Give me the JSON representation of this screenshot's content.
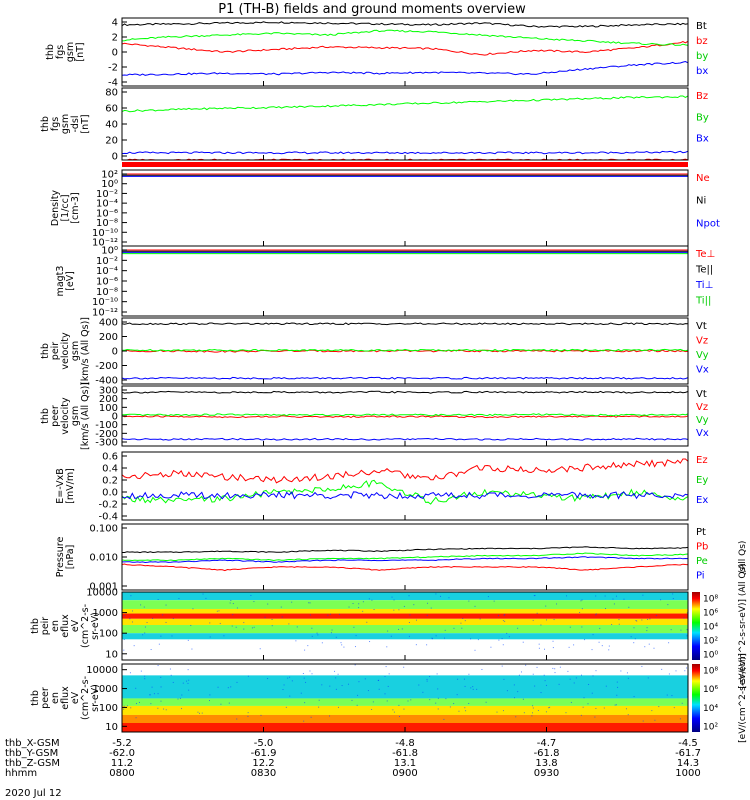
{
  "title": "P1 (TH-B) fields and ground moments overview",
  "date": "2020 Jul 12",
  "colors": {
    "black": "#000000",
    "red": "#ff0000",
    "green": "#00ff00",
    "blue": "#0000ff"
  },
  "x_axis": {
    "ticks": [
      "0800",
      "0830",
      "0900",
      "0930",
      "1000"
    ],
    "rows": [
      {
        "label": "thb_X-GSM",
        "values": [
          "-5.2",
          "-5.0",
          "-4.8",
          "-4.7",
          "-4.5"
        ]
      },
      {
        "label": "thb_Y-GSM",
        "values": [
          "-62.0",
          "-61.9",
          "-61.8",
          "-61.8",
          "-61.7"
        ]
      },
      {
        "label": "thb_Z-GSM",
        "values": [
          "11.2",
          "12.2",
          "13.1",
          "13.8",
          "14.3"
        ]
      },
      {
        "label": "hhmm",
        "values": [
          "0800",
          "0830",
          "0900",
          "0930",
          "1000"
        ]
      }
    ]
  },
  "chart_data": [
    {
      "type": "line",
      "id": "fgs",
      "ylabel": [
        "thb",
        "fgs",
        "gsm",
        "[nT]"
      ],
      "yticks": [
        "4",
        "2",
        "0",
        "-2",
        "-4"
      ],
      "ylim": [
        -4,
        4
      ],
      "series": [
        {
          "name": "Bt",
          "color": "#000000",
          "values": [
            3.2,
            3.3,
            3.4,
            3.5,
            3.4,
            3.3,
            3.2,
            3.4,
            3.0,
            3.0,
            3.2,
            3.3
          ]
        },
        {
          "name": "bz",
          "color": "#ff0000",
          "values": [
            1.0,
            0.5,
            0.0,
            0.3,
            0.6,
            0.5,
            0.4,
            -0.3,
            0.2,
            0.0,
            0.5,
            1.2
          ]
        },
        {
          "name": "by",
          "color": "#00ff00",
          "values": [
            1.4,
            1.8,
            2.0,
            2.2,
            2.0,
            2.5,
            2.4,
            2.0,
            1.6,
            1.3,
            1.0,
            0.8
          ]
        },
        {
          "name": "bx",
          "color": "#0000ff",
          "values": [
            -2.7,
            -2.6,
            -2.5,
            -2.6,
            -2.4,
            -2.5,
            -2.4,
            -2.5,
            -2.6,
            -2.0,
            -1.5,
            -1.2
          ]
        }
      ]
    },
    {
      "type": "line",
      "id": "fgs-dsl",
      "ylabel": [
        "thb",
        "fgs",
        "gsm",
        "-dsl",
        "[nT]"
      ],
      "yticks": [
        "80",
        "60",
        "40",
        "20",
        "0"
      ],
      "ylim": [
        -10,
        90
      ],
      "series": [
        {
          "name": "Bz",
          "color": "#ff0000",
          "values": [
            -10,
            -10,
            -10,
            -10,
            -10,
            -10,
            -10,
            -10,
            -10,
            -10,
            -10,
            -10
          ]
        },
        {
          "name": "By",
          "color": "#00ff00",
          "values": [
            58,
            60,
            62,
            63,
            65,
            67,
            69,
            71,
            73,
            75,
            77,
            78
          ]
        },
        {
          "name": "Bx",
          "color": "#0000ff",
          "values": [
            0,
            0,
            0,
            0,
            0,
            0,
            0,
            0,
            0,
            0,
            0.5,
            1
          ]
        }
      ]
    },
    {
      "type": "line",
      "id": "density",
      "yscale": "log",
      "ylabel": [
        "Density",
        "[1/cc]",
        "[cm-3]"
      ],
      "yticks": [
        "10²",
        "10⁰",
        "10⁻²",
        "10⁻⁴",
        "10⁻⁶",
        "10⁻⁸",
        "10⁻¹⁰",
        "10⁻¹²"
      ],
      "series": [
        {
          "name": "Ne",
          "color": "#ff0000",
          "values": [
            0.5,
            0.5,
            0.5,
            0.5,
            0.5,
            0.5,
            0.5,
            0.5,
            0.5,
            0.5,
            0.5,
            0.5
          ]
        },
        {
          "name": "Ni",
          "color": "#000000",
          "values": [
            0.6,
            0.6,
            0.6,
            0.6,
            0.6,
            0.6,
            0.6,
            0.6,
            0.6,
            0.6,
            0.6,
            0.6
          ]
        },
        {
          "name": "Npot",
          "color": "#0000ff",
          "values": [
            0.7,
            0.7,
            0.7,
            0.7,
            0.7,
            0.7,
            0.7,
            0.7,
            0.7,
            0.7,
            0.7,
            0.7
          ]
        }
      ]
    },
    {
      "type": "line",
      "id": "temperature",
      "yscale": "log",
      "ylabel": [
        "magt3",
        "[eV]"
      ],
      "yticks": [
        "10⁰",
        "10⁻²",
        "10⁻⁴",
        "10⁻⁶",
        "10⁻⁸",
        "10⁻¹⁰",
        "10⁻¹²"
      ],
      "series": [
        {
          "name": "Te⊥",
          "color": "#ff0000",
          "values": [
            1,
            1,
            1,
            1,
            1,
            1,
            1,
            1,
            1,
            1,
            1,
            1
          ]
        },
        {
          "name": "Te||",
          "color": "#000000",
          "values": [
            1,
            1,
            1,
            1,
            1,
            1,
            1,
            1,
            1,
            1,
            1,
            1
          ]
        },
        {
          "name": "Ti⊥",
          "color": "#0000ff",
          "values": [
            1,
            1,
            1,
            1,
            1,
            1,
            1,
            1,
            1,
            1,
            1,
            1
          ]
        },
        {
          "name": "Ti||",
          "color": "#00ff00",
          "values": [
            1,
            1,
            1,
            1,
            1,
            1,
            1,
            1,
            1,
            1,
            1,
            1
          ]
        }
      ]
    },
    {
      "type": "line",
      "id": "peir-velocity",
      "ylabel": [
        "thb",
        "peir",
        "velocity",
        "gsm",
        "[km/s (All Qs)]"
      ],
      "yticks": [
        "400",
        "200",
        "0",
        "-200",
        "-400"
      ],
      "ylim": [
        -400,
        400
      ],
      "series": [
        {
          "name": "Vt",
          "color": "#000000",
          "values": [
            330,
            330,
            330,
            330,
            330,
            330,
            330,
            330,
            330,
            330,
            330,
            330
          ]
        },
        {
          "name": "Vz",
          "color": "#ff0000",
          "values": [
            0,
            0,
            -5,
            0,
            0,
            0,
            0,
            0,
            0,
            0,
            0,
            0
          ]
        },
        {
          "name": "Vy",
          "color": "#00ff00",
          "values": [
            10,
            10,
            10,
            10,
            10,
            10,
            10,
            10,
            10,
            10,
            10,
            10
          ]
        },
        {
          "name": "Vx",
          "color": "#0000ff",
          "values": [
            -330,
            -330,
            -330,
            -330,
            -330,
            -330,
            -330,
            -330,
            -330,
            -330,
            -330,
            -330
          ]
        }
      ]
    },
    {
      "type": "line",
      "id": "peer-velocity",
      "ylabel": [
        "thb",
        "peer",
        "velocity",
        "gsm",
        "[km/s (All Qs)]"
      ],
      "yticks": [
        "300",
        "200",
        "100",
        "0",
        "-100",
        "-200",
        "-300"
      ],
      "ylim": [
        -300,
        300
      ],
      "series": [
        {
          "name": "Vt",
          "color": "#000000",
          "values": [
            235,
            240,
            235,
            240,
            235,
            240,
            235,
            240,
            235,
            240,
            235,
            240
          ]
        },
        {
          "name": "Vz",
          "color": "#ff0000",
          "values": [
            -5,
            -5,
            -10,
            -5,
            -10,
            -5,
            -5,
            -10,
            -5,
            -5,
            -5,
            -5
          ]
        },
        {
          "name": "Vy",
          "color": "#00ff00",
          "values": [
            10,
            10,
            15,
            10,
            10,
            15,
            10,
            10,
            15,
            10,
            10,
            15
          ]
        },
        {
          "name": "Vx",
          "color": "#0000ff",
          "values": [
            -230,
            -235,
            -230,
            -235,
            -230,
            -235,
            -230,
            -235,
            -230,
            -235,
            -230,
            -235
          ]
        }
      ]
    },
    {
      "type": "line",
      "id": "efield",
      "ylabel": [
        "E=-VxB",
        "[mV/m]"
      ],
      "yticks": [
        "0.6",
        "0.4",
        "0.2",
        "0.0",
        "-0.2",
        "-0.4"
      ],
      "ylim": [
        -0.4,
        0.7
      ],
      "series": [
        {
          "name": "Ez",
          "color": "#ff0000",
          "values": [
            0.3,
            0.35,
            0.3,
            0.25,
            0.3,
            0.4,
            0.25,
            0.45,
            0.4,
            0.45,
            0.5,
            0.55
          ]
        },
        {
          "name": "Ey",
          "color": "#00ff00",
          "values": [
            -0.05,
            -0.1,
            -0.05,
            0.05,
            0.1,
            0.2,
            -0.1,
            0.05,
            0.0,
            -0.05,
            0.05,
            -0.05
          ]
        },
        {
          "name": "Ex",
          "color": "#0000ff",
          "values": [
            0,
            0,
            0,
            0,
            0,
            0,
            0,
            0,
            0,
            0,
            0,
            0
          ]
        }
      ]
    },
    {
      "type": "line",
      "id": "pressure",
      "yscale": "log",
      "ylabel": [
        "Pressure",
        "[nPa]"
      ],
      "ylabel_right": "(All Qs)",
      "yticks": [
        "0.100",
        "0.010",
        "0.001"
      ],
      "ylim": [
        0.001,
        0.1
      ],
      "series": [
        {
          "name": "Pt",
          "color": "#000000",
          "values": [
            0.014,
            0.014,
            0.015,
            0.014,
            0.016,
            0.015,
            0.017,
            0.018,
            0.018,
            0.02,
            0.018,
            0.019
          ]
        },
        {
          "name": "Pb",
          "color": "#ff0000",
          "values": [
            0.006,
            0.005,
            0.004,
            0.005,
            0.005,
            0.004,
            0.005,
            0.005,
            0.005,
            0.004,
            0.005,
            0.006
          ]
        },
        {
          "name": "Pe",
          "color": "#00ff00",
          "values": [
            0.008,
            0.008,
            0.009,
            0.008,
            0.009,
            0.009,
            0.01,
            0.011,
            0.011,
            0.013,
            0.011,
            0.012
          ]
        },
        {
          "name": "Pi",
          "color": "#0000ff",
          "values": [
            0.007,
            0.007,
            0.008,
            0.007,
            0.008,
            0.008,
            0.008,
            0.009,
            0.009,
            0.01,
            0.009,
            0.009
          ]
        }
      ]
    },
    {
      "type": "heatmap",
      "id": "peir-eflux",
      "ylabel": [
        "thb",
        "peir",
        "en",
        "eflux",
        "eV",
        "(cm^2-s-",
        "sr-eV)"
      ],
      "yticks": [
        "10000",
        "1000",
        "100",
        "10"
      ],
      "colorbar": {
        "ticks": [
          "10⁸",
          "10⁶",
          "10⁴",
          "10²",
          "10⁰"
        ],
        "label": "[eV/(cm^2-s-sr-eV)] (All Qs)"
      },
      "bands": [
        {
          "range": [
            10000,
            4000
          ],
          "level": "cyan"
        },
        {
          "range": [
            4000,
            1500
          ],
          "level": "green"
        },
        {
          "range": [
            1500,
            900
          ],
          "level": "yellow"
        },
        {
          "range": [
            900,
            500
          ],
          "level": "red"
        },
        {
          "range": [
            500,
            250
          ],
          "level": "yellow"
        },
        {
          "range": [
            250,
            100
          ],
          "level": "green"
        },
        {
          "range": [
            100,
            50
          ],
          "level": "cyan"
        },
        {
          "range": [
            50,
            5
          ],
          "level": "none"
        }
      ]
    },
    {
      "type": "heatmap",
      "id": "peer-eflux",
      "ylabel": [
        "thb",
        "peer",
        "en",
        "eflux",
        "eV",
        "(cm^2-s-",
        "sr-eV)"
      ],
      "yticks": [
        "10000",
        "1000",
        "100",
        "10"
      ],
      "colorbar": {
        "ticks": [
          "10⁸",
          "10⁶",
          "10⁴",
          "10²"
        ],
        "label": "[eV/(cm^2-s-sr-eV)]"
      },
      "bands": [
        {
          "range": [
            20000,
            5000
          ],
          "level": "none"
        },
        {
          "range": [
            5000,
            300
          ],
          "level": "cyan"
        },
        {
          "range": [
            300,
            120
          ],
          "level": "green"
        },
        {
          "range": [
            120,
            40
          ],
          "level": "yellow"
        },
        {
          "range": [
            40,
            15
          ],
          "level": "orange"
        },
        {
          "range": [
            15,
            5
          ],
          "level": "red"
        }
      ]
    }
  ]
}
